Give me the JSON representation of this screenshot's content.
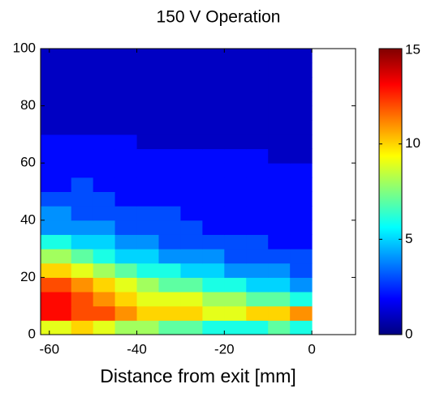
{
  "chart_data": {
    "type": "heatmap",
    "title": "150 V Operation",
    "x_label": "Distance from exit [mm]",
    "x_bins": [
      -62,
      -55,
      -50,
      -45,
      -40,
      -35,
      -30,
      -25,
      -20,
      -15,
      -10,
      -5,
      0
    ],
    "y_bins": [
      0,
      5,
      10,
      15,
      20,
      25,
      30,
      35,
      40,
      45,
      50,
      55,
      60,
      65,
      70,
      75,
      80,
      85,
      90,
      95,
      100
    ],
    "values": [
      [
        9,
        10,
        9,
        8,
        8,
        7,
        7,
        6,
        6,
        6,
        7,
        6
      ],
      [
        13,
        12,
        12,
        11,
        10,
        10,
        10,
        9,
        9,
        10,
        10,
        11
      ],
      [
        13,
        12,
        11,
        10,
        9,
        9,
        9,
        8,
        8,
        7,
        7,
        6
      ],
      [
        12,
        11,
        10,
        9,
        8,
        7,
        7,
        6,
        6,
        5,
        5,
        4
      ],
      [
        10,
        9,
        8,
        7,
        6,
        6,
        5,
        5,
        4,
        4,
        4,
        3
      ],
      [
        8,
        7,
        6,
        5,
        5,
        4,
        4,
        4,
        3,
        3,
        3,
        3
      ],
      [
        6,
        5,
        5,
        4,
        4,
        3,
        3,
        3,
        3,
        3,
        2,
        2
      ],
      [
        4,
        4,
        4,
        3,
        3,
        3,
        3,
        2,
        2,
        2,
        2,
        2
      ],
      [
        4,
        3,
        3,
        3,
        3,
        3,
        2,
        2,
        2,
        2,
        2,
        2
      ],
      [
        3,
        3,
        3,
        2,
        2,
        2,
        2,
        2,
        2,
        2,
        2,
        2
      ],
      [
        2,
        3,
        2,
        2,
        2,
        2,
        2,
        2,
        2,
        2,
        2,
        2
      ],
      [
        2,
        2,
        2,
        2,
        2,
        2,
        2,
        2,
        2,
        2,
        2,
        2
      ],
      [
        2,
        2,
        2,
        2,
        2,
        2,
        2,
        2,
        2,
        2,
        1,
        1
      ],
      [
        2,
        2,
        2,
        2,
        1,
        1,
        1,
        1,
        1,
        1,
        1,
        1
      ],
      [
        1,
        1,
        1,
        1,
        1,
        1,
        1,
        1,
        1,
        1,
        1,
        1
      ],
      [
        1,
        1,
        1,
        1,
        1,
        1,
        1,
        1,
        1,
        1,
        1,
        1
      ],
      [
        1,
        1,
        1,
        1,
        1,
        1,
        1,
        1,
        1,
        1,
        1,
        1
      ],
      [
        1,
        1,
        1,
        1,
        1,
        1,
        1,
        1,
        1,
        1,
        1,
        1
      ],
      [
        1,
        1,
        1,
        1,
        1,
        1,
        1,
        1,
        1,
        1,
        1,
        1
      ],
      [
        1,
        1,
        1,
        1,
        1,
        1,
        1,
        1,
        1,
        1,
        1,
        1
      ]
    ],
    "xlim": [
      -62,
      10
    ],
    "xticks": [
      -60,
      -40,
      -20,
      0
    ],
    "ylim": [
      0,
      100
    ],
    "yticks": [
      0,
      20,
      40,
      60,
      80,
      100
    ],
    "clim": [
      0,
      15
    ],
    "cticks": [
      0,
      5,
      10,
      15
    ],
    "colormap": "jet"
  }
}
